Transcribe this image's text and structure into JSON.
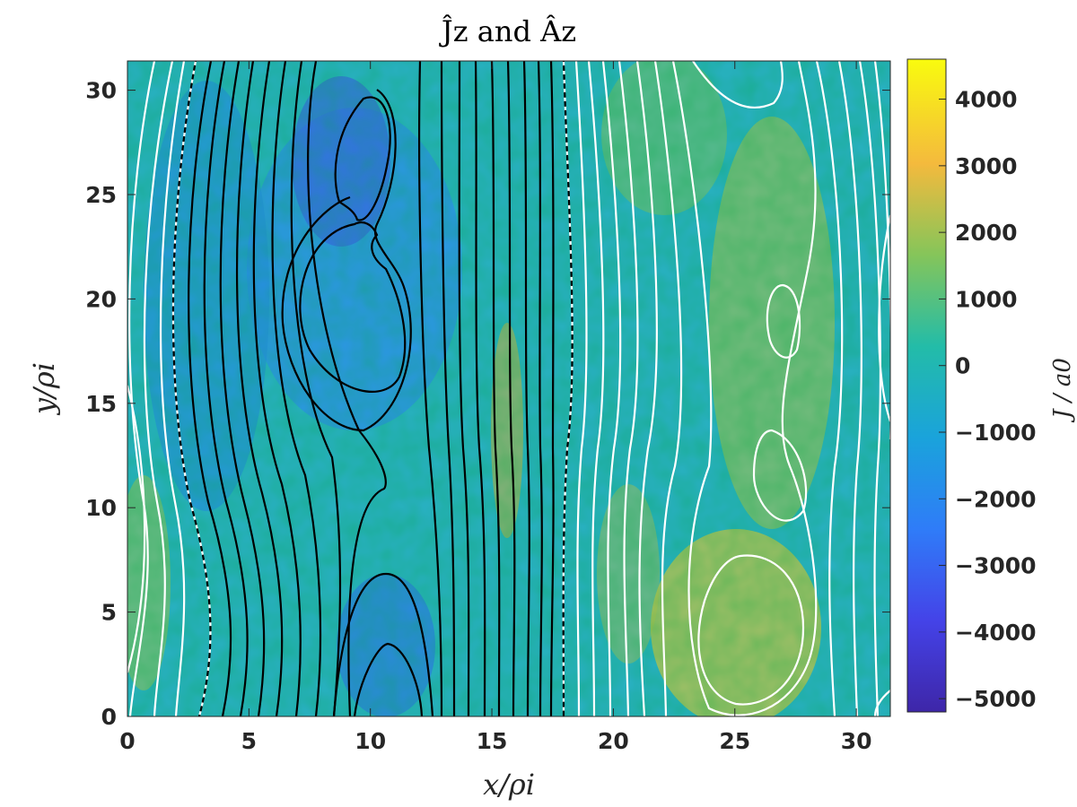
{
  "chart_data": {
    "type": "heatmap",
    "title": "Ĵz and Âz",
    "xlabel": "x/ρi",
    "ylabel": "y/ρi",
    "xlim": [
      0,
      31.4
    ],
    "ylim": [
      0,
      31.4
    ],
    "x_ticks": [
      0,
      5,
      10,
      15,
      20,
      25,
      30
    ],
    "y_ticks": [
      0,
      5,
      10,
      15,
      20,
      25,
      30
    ],
    "colorbar": {
      "label": "J / a0",
      "range": [
        -5200,
        4600
      ],
      "ticks": [
        4000,
        3000,
        2000,
        1000,
        0,
        -1000,
        -2000,
        -3000,
        -4000,
        -5000
      ],
      "tick_labels": [
        "4000",
        "3000",
        "2000",
        "1000",
        "0",
        "−1000",
        "−2000",
        "−3000",
        "−4000",
        "−5000"
      ],
      "colormap": "parula"
    },
    "overlay": "contours of Âz: black lines for negative values, white lines for positive values, dashed separatrix at Âz = 0",
    "colors": {
      "parula_low": "#3e26a8",
      "parula_mid": "#1fb8b6",
      "parula_high": "#f9fb0e",
      "negative_contour": "#000000",
      "positive_contour": "#ffffff"
    }
  }
}
